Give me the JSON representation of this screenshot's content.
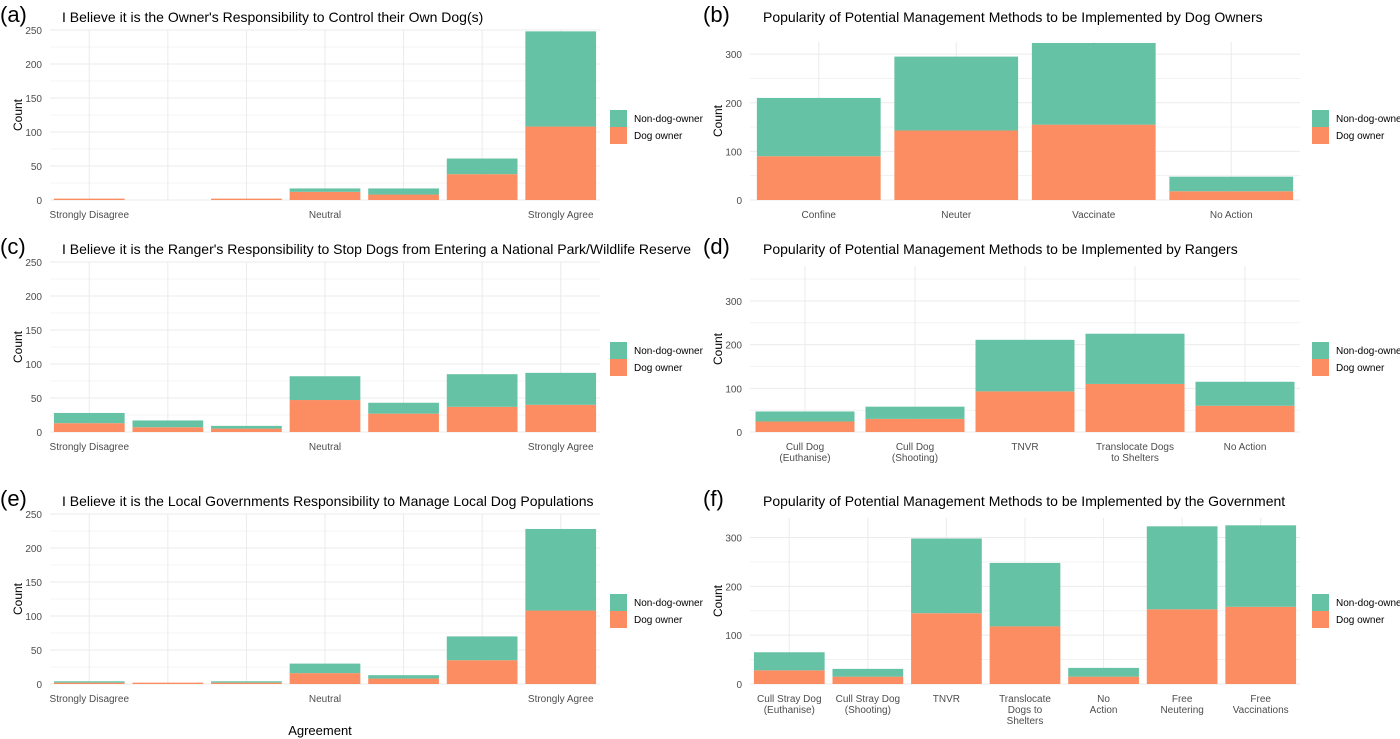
{
  "figure": {
    "shared_xlabel": "Agreement",
    "legend": {
      "items": [
        "Non-dog-owner",
        "Dog owner"
      ]
    },
    "colors": {
      "dog_owner": "#FC8D62",
      "non_dog_owner": "#66C2A5",
      "grid": "#ebebeb",
      "text": "#4d4d4d"
    }
  },
  "chart_data": [
    {
      "panel": "(a)",
      "type": "bar",
      "stacked": true,
      "title": "I Believe it is the Owner's Responsibility to Control their Own Dog(s)",
      "ylabel": "Count",
      "ylim": [
        0,
        250
      ],
      "yticks": [
        0,
        50,
        100,
        150,
        200,
        250
      ],
      "categories": [
        "Strongly Disagree",
        "",
        "",
        "Neutral",
        "",
        "",
        "Strongly Agree"
      ],
      "series": [
        {
          "name": "Dog owner",
          "values": [
            2,
            0,
            2,
            12,
            8,
            38,
            108
          ]
        },
        {
          "name": "Non-dog-owner",
          "values": [
            0,
            0,
            0,
            5,
            9,
            23,
            140
          ]
        }
      ],
      "legend_position": "right",
      "grid": true
    },
    {
      "panel": "(b)",
      "type": "bar",
      "stacked": true,
      "title": "Popularity of Potential Management Methods to be Implemented by Dog Owners",
      "ylabel": "Count",
      "ylim": [
        0,
        325
      ],
      "yticks": [
        0,
        100,
        200,
        300
      ],
      "categories": [
        "Confine",
        "Neuter",
        "Vaccinate",
        "No Action"
      ],
      "series": [
        {
          "name": "Dog owner",
          "values": [
            90,
            143,
            155,
            18
          ]
        },
        {
          "name": "Non-dog-owner",
          "values": [
            120,
            152,
            168,
            30
          ]
        }
      ],
      "legend_position": "right",
      "grid": true
    },
    {
      "panel": "(c)",
      "type": "bar",
      "stacked": true,
      "title": "I Believe it is the Ranger's Responsibility to Stop Dogs from Entering a National Park/Wildlife Reserve",
      "ylabel": "Count",
      "ylim": [
        0,
        250
      ],
      "yticks": [
        0,
        50,
        100,
        150,
        200,
        250
      ],
      "categories": [
        "Strongly Disagree",
        "",
        "",
        "Neutral",
        "",
        "",
        "Strongly Agree"
      ],
      "series": [
        {
          "name": "Dog owner",
          "values": [
            13,
            7,
            5,
            47,
            27,
            37,
            40
          ]
        },
        {
          "name": "Non-dog-owner",
          "values": [
            15,
            10,
            4,
            35,
            16,
            48,
            47
          ]
        }
      ],
      "legend_position": "right",
      "grid": true
    },
    {
      "panel": "(d)",
      "type": "bar",
      "stacked": true,
      "title": "Popularity of Potential Management Methods to be Implemented by Rangers",
      "ylabel": "Count",
      "ylim": [
        0,
        380
      ],
      "yticks": [
        0,
        100,
        200,
        300
      ],
      "categories": [
        "Cull Dog\n(Euthanise)",
        "Cull Dog\n(Shooting)",
        "TNVR",
        "Translocate Dogs\nto Shelters",
        "No Action"
      ],
      "series": [
        {
          "name": "Dog owner",
          "values": [
            24,
            30,
            93,
            110,
            60
          ]
        },
        {
          "name": "Non-dog-owner",
          "values": [
            23,
            28,
            118,
            115,
            55
          ]
        }
      ],
      "legend_position": "right",
      "grid": true
    },
    {
      "panel": "(e)",
      "type": "bar",
      "stacked": true,
      "title": "I Believe it is the Local Governments Responsibility to Manage Local Dog Populations",
      "ylabel": "Count",
      "ylim": [
        0,
        250
      ],
      "yticks": [
        0,
        50,
        100,
        150,
        200,
        250
      ],
      "categories": [
        "Strongly Disagree",
        "",
        "",
        "Neutral",
        "",
        "",
        "Strongly Agree"
      ],
      "series": [
        {
          "name": "Dog owner",
          "values": [
            2,
            2,
            2,
            16,
            8,
            35,
            108
          ]
        },
        {
          "name": "Non-dog-owner",
          "values": [
            2,
            0,
            2,
            14,
            5,
            35,
            120
          ]
        }
      ],
      "legend_position": "right",
      "grid": true
    },
    {
      "panel": "(f)",
      "type": "bar",
      "stacked": true,
      "title": "Popularity of Potential Management Methods to be Implemented by the Government",
      "ylabel": "Count",
      "ylim": [
        0,
        340
      ],
      "yticks": [
        0,
        100,
        200,
        300
      ],
      "categories": [
        "Cull Stray Dog\n(Euthanise)",
        "Cull Stray Dog\n(Shooting)",
        "TNVR",
        "Translocate\nDogs to\nShelters",
        "No\nAction",
        "Free\nNeutering",
        "Free\nVaccinations"
      ],
      "series": [
        {
          "name": "Dog owner",
          "values": [
            28,
            15,
            145,
            118,
            15,
            153,
            158
          ]
        },
        {
          "name": "Non-dog-owner",
          "values": [
            37,
            16,
            153,
            130,
            18,
            170,
            167
          ]
        }
      ],
      "legend_position": "right",
      "grid": true
    }
  ]
}
